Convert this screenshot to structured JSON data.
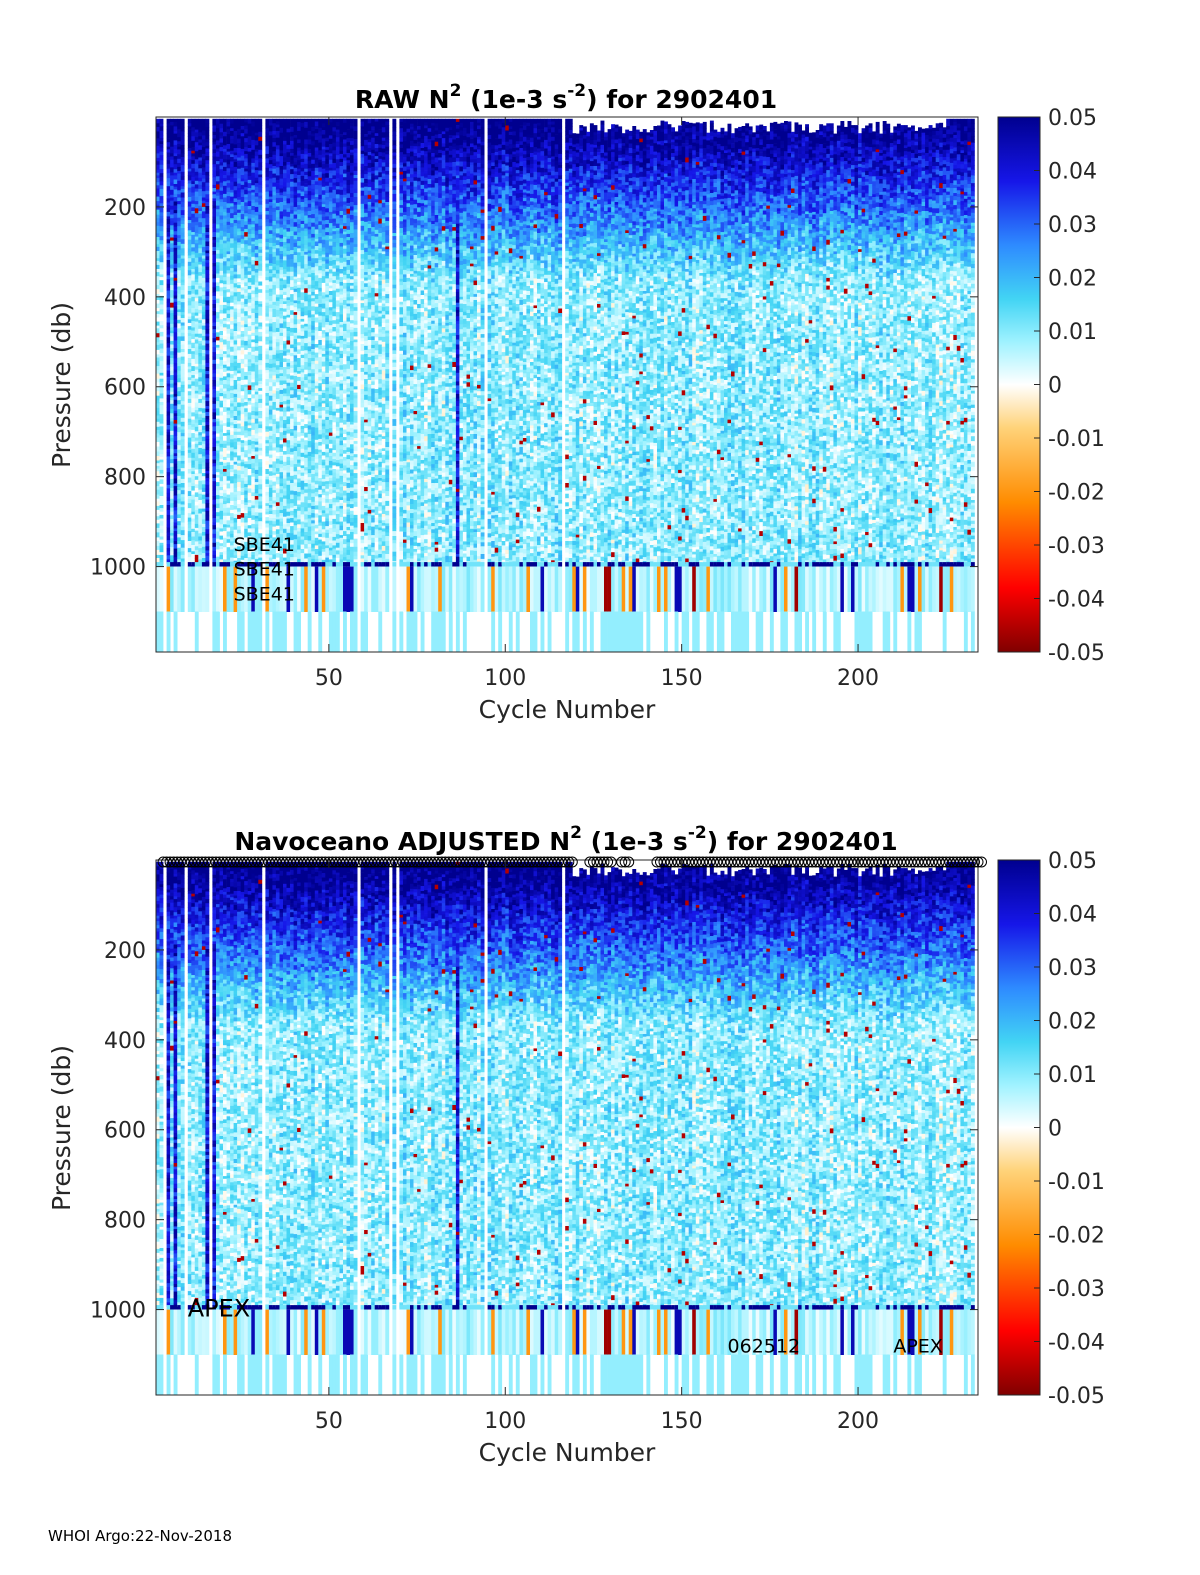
{
  "footer": "WHOI Argo:22-Nov-2018",
  "chart_data": [
    {
      "type": "heatmap",
      "title_parts": [
        "RAW N",
        "2",
        " (1e-3 s",
        "-2",
        ") for 2902401"
      ],
      "xlabel": "Cycle Number",
      "ylabel": "Pressure (db)",
      "xlim": [
        1,
        234
      ],
      "ylim": [
        1190,
        0
      ],
      "xticks": [
        50,
        100,
        150,
        200
      ],
      "xtick_labels": [
        "50",
        "100",
        "150",
        "200"
      ],
      "yticks": [
        200,
        400,
        600,
        800,
        1000
      ],
      "ytick_labels": [
        "200",
        "400",
        "600",
        "800",
        "1000"
      ],
      "clim": [
        -0.05,
        0.05
      ],
      "colorbar_ticks": [
        0.05,
        0.04,
        0.03,
        0.02,
        0.01,
        0,
        -0.01,
        -0.02,
        -0.03,
        -0.04,
        -0.05
      ],
      "colorbar_labels": [
        "0.05",
        "0.04",
        "0.03",
        "0.02",
        "0.01",
        "0",
        "-0.01",
        "-0.02",
        "-0.03",
        "-0.04",
        "-0.05"
      ],
      "annotations": [
        {
          "text": "SBE41",
          "x": 23,
          "y": 965
        },
        {
          "text": "SBE41",
          "x": 23,
          "y": 1020
        },
        {
          "text": "SBE41",
          "x": 23,
          "y": 1075
        }
      ],
      "cycle_markers": false,
      "colors": {
        "deep": "#00008f",
        "bg": "#ffffff",
        "axis": "#262626"
      }
    },
    {
      "type": "heatmap",
      "title_parts": [
        "Navoceano  ADJUSTED N",
        "2",
        " (1e-3 s",
        "-2",
        ") for 2902401"
      ],
      "xlabel": "Cycle Number",
      "ylabel": "Pressure (db)",
      "xlim": [
        1,
        234
      ],
      "ylim": [
        1190,
        0
      ],
      "xticks": [
        50,
        100,
        150,
        200
      ],
      "xtick_labels": [
        "50",
        "100",
        "150",
        "200"
      ],
      "yticks": [
        200,
        400,
        600,
        800,
        1000
      ],
      "ytick_labels": [
        "200",
        "400",
        "600",
        "800",
        "1000"
      ],
      "clim": [
        -0.05,
        0.05
      ],
      "colorbar_ticks": [
        0.05,
        0.04,
        0.03,
        0.02,
        0.01,
        0,
        -0.01,
        -0.02,
        -0.03,
        -0.04,
        -0.05
      ],
      "colorbar_labels": [
        "0.05",
        "0.04",
        "0.03",
        "0.02",
        "0.01",
        "0",
        "-0.01",
        "-0.02",
        "-0.03",
        "-0.04",
        "-0.05"
      ],
      "annotations": [
        {
          "text": "APEX",
          "x": 10,
          "y": 1015,
          "size": "large"
        },
        {
          "text": "062512",
          "x": 163,
          "y": 1095
        },
        {
          "text": "APEX",
          "x": 210,
          "y": 1095
        }
      ],
      "cycle_markers": true,
      "colors": {
        "deep": "#00008f",
        "bg": "#ffffff",
        "axis": "#262626"
      }
    }
  ]
}
